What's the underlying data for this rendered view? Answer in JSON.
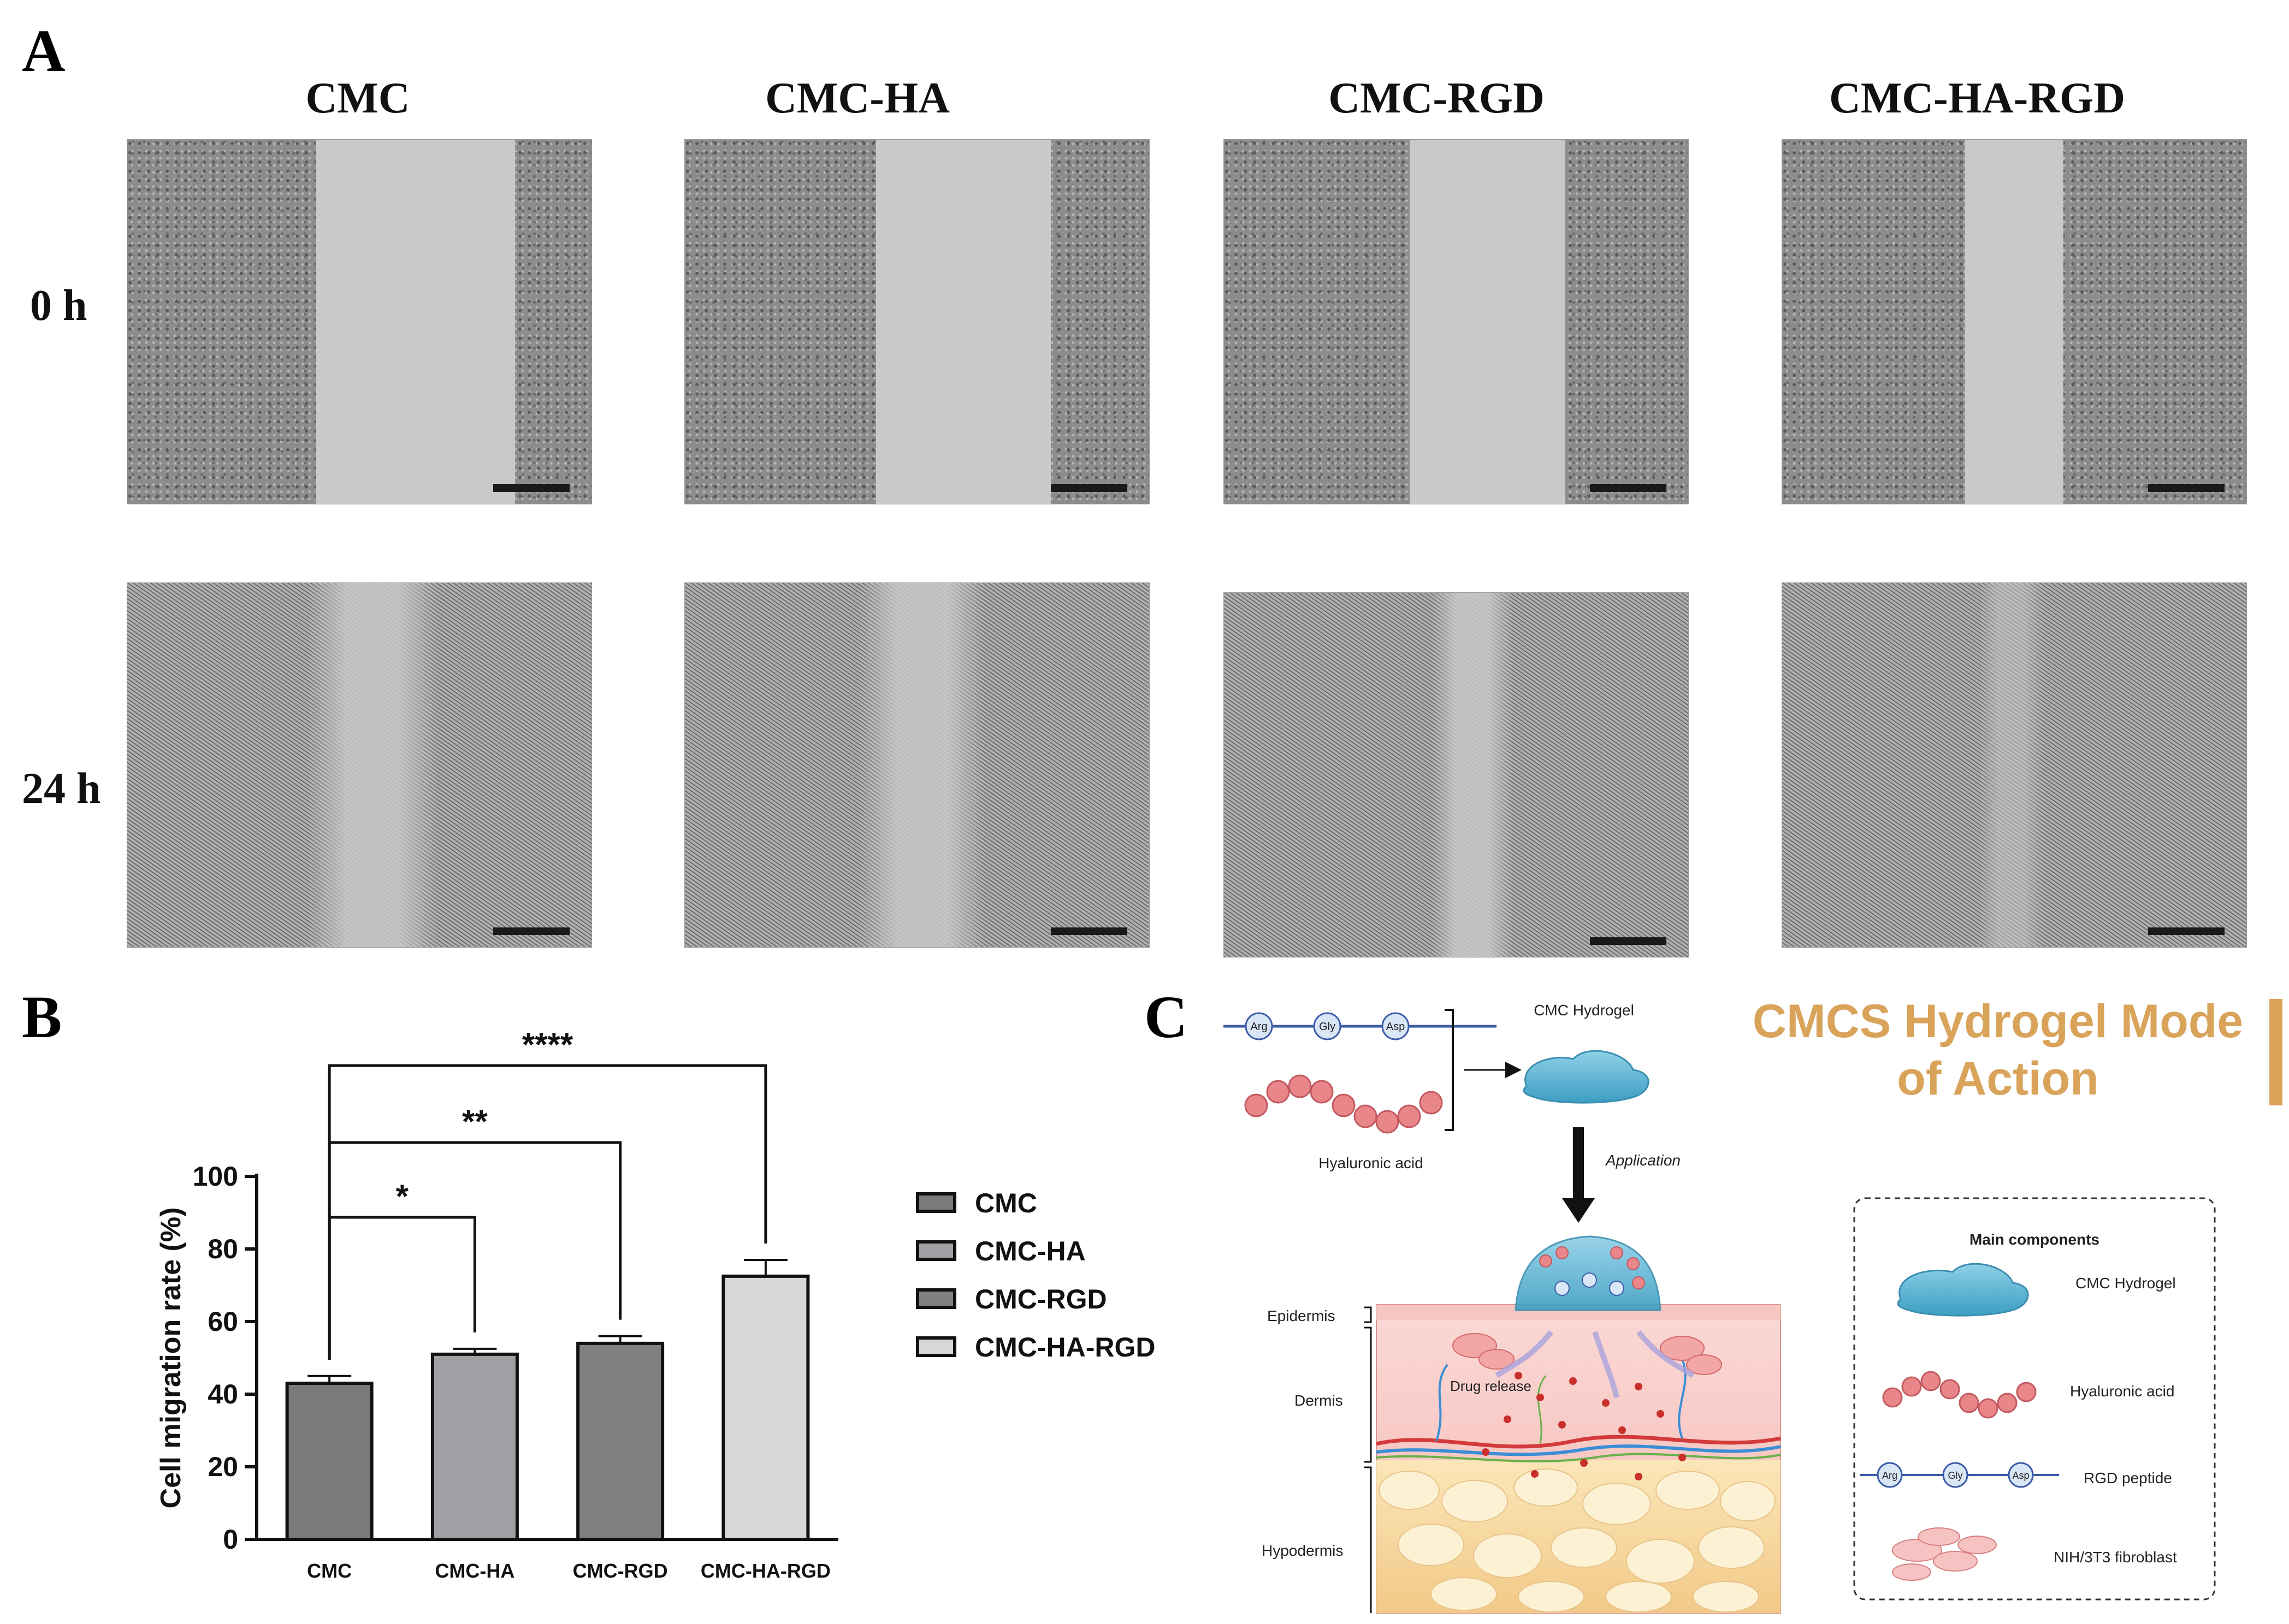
{
  "panel_labels": {
    "a": "A",
    "b": "B",
    "c": "C"
  },
  "panel_a": {
    "columns": [
      "CMC",
      "CMC-HA",
      "CMC-RGD",
      "CMC-HA-RGD"
    ],
    "rows": [
      "0 h",
      "24 h"
    ]
  },
  "chart_data": {
    "type": "bar",
    "categories": [
      "CMC",
      "CMC-HA",
      "CMC-RGD",
      "CMC-HA-RGD"
    ],
    "values": [
      43,
      51,
      54,
      72.5
    ],
    "errors": [
      2,
      1.5,
      2,
      4.5
    ],
    "colors": [
      "#7a7a7a",
      "#a0a0a4",
      "#808080",
      "#d7d7d7"
    ],
    "ylabel": "Cell migration rate (%)",
    "ylim": [
      0,
      100
    ],
    "yticks": [
      0,
      20,
      40,
      60,
      80,
      100
    ],
    "legend": [
      "CMC",
      "CMC-HA",
      "CMC-RGD",
      "CMC-HA-RGD"
    ],
    "legend_position": "right",
    "significance": [
      {
        "from": "CMC",
        "to": "CMC-HA",
        "label": "*"
      },
      {
        "from": "CMC",
        "to": "CMC-RGD",
        "label": "**"
      },
      {
        "from": "CMC",
        "to": "CMC-HA-RGD",
        "label": "****"
      }
    ]
  },
  "panel_c": {
    "title_line1": "CMCS Hydrogel Mode",
    "title_line2": "of Action",
    "peptide_residues": [
      "Arg",
      "Gly",
      "Asp"
    ],
    "hyaluronic_label": "Hyaluronic acid",
    "hydrogel_label": "CMC Hydrogel",
    "application_label": "Application",
    "drug_release_label": "Drug release",
    "skin_layers": [
      "Epidermis",
      "Dermis",
      "Hypodermis"
    ],
    "legend_title": "Main components",
    "legend_items": [
      {
        "label": "CMC Hydrogel",
        "color": "#e0744f"
      },
      {
        "label": "Hyaluronic acid",
        "color": "#8a3fb8"
      },
      {
        "label": "RGD peptide",
        "color": "#777777"
      },
      {
        "label": "NIH/3T3 fibroblast",
        "color": "#999999"
      }
    ],
    "title_color": "#d9a35a"
  }
}
